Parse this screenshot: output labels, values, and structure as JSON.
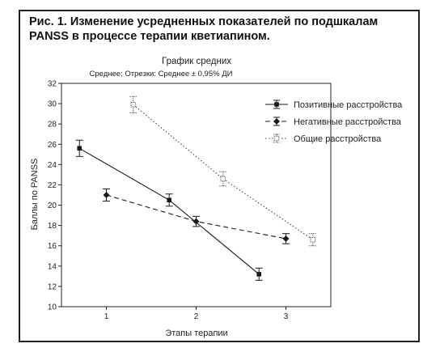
{
  "figure": {
    "caption_line1": "Рис. 1. Изменение усредненных показателей по подшкалам",
    "caption_line2": "PANSS в процессе терапии кветиапином."
  },
  "chart_data": {
    "type": "line",
    "title": "График средних",
    "subtitle": "Среднее; Отрезки: Среднее ± 0,95% ДИ",
    "xlabel": "Этапы терапии",
    "ylabel": "Баллы по PANSS",
    "x_ticks": [
      "1",
      "2",
      "3"
    ],
    "xlim": [
      0.5,
      3.5
    ],
    "ylim": [
      10,
      32
    ],
    "y_ticks": [
      10,
      12,
      14,
      16,
      18,
      20,
      22,
      24,
      26,
      28,
      30,
      32
    ],
    "grid": false,
    "legend_position": "top-right",
    "series": [
      {
        "name": "Позитивные расстройства",
        "marker": "filled-square",
        "line_style": "solid",
        "color": "#1a1a1a",
        "points": [
          {
            "x": 0.7,
            "y": 25.6,
            "ci": [
              24.8,
              26.4
            ]
          },
          {
            "x": 1.7,
            "y": 20.5,
            "ci": [
              19.9,
              21.1
            ]
          },
          {
            "x": 2.7,
            "y": 13.2,
            "ci": [
              12.6,
              13.8
            ]
          }
        ]
      },
      {
        "name": "Негативные расстройства",
        "marker": "filled-diamond",
        "line_style": "dashed",
        "color": "#1a1a1a",
        "points": [
          {
            "x": 1.0,
            "y": 21.0,
            "ci": [
              20.4,
              21.6
            ]
          },
          {
            "x": 2.0,
            "y": 18.4,
            "ci": [
              17.9,
              18.9
            ]
          },
          {
            "x": 3.0,
            "y": 16.7,
            "ci": [
              16.2,
              17.2
            ]
          }
        ]
      },
      {
        "name": "Общие расстройства",
        "marker": "open-square",
        "line_style": "dotted",
        "color": "#444444",
        "points": [
          {
            "x": 1.3,
            "y": 29.9,
            "ci": [
              29.1,
              30.7
            ]
          },
          {
            "x": 2.3,
            "y": 22.6,
            "ci": [
              21.9,
              23.3
            ]
          },
          {
            "x": 3.3,
            "y": 16.6,
            "ci": [
              16.0,
              17.2
            ]
          }
        ]
      }
    ]
  }
}
